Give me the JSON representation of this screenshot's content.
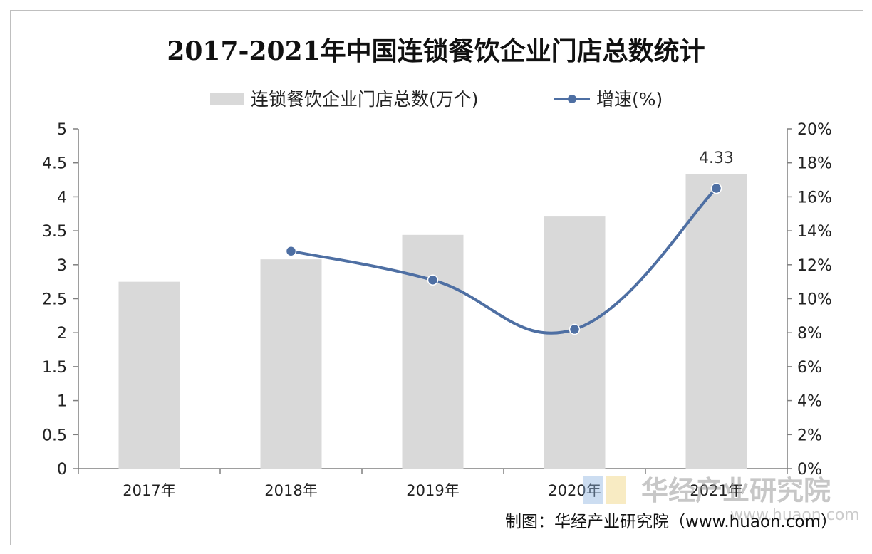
{
  "chart_data": {
    "type": "bar",
    "title": "2017-2021年中国连锁餐饮企业门店总数统计",
    "categories": [
      "2017年",
      "2018年",
      "2019年",
      "2020年",
      "2021年"
    ],
    "series": [
      {
        "name": "连锁餐饮企业门店总数(万个)",
        "type": "bar",
        "axis": "left",
        "values": [
          2.75,
          3.08,
          3.44,
          3.71,
          4.33
        ]
      },
      {
        "name": "增速(%)",
        "type": "line",
        "axis": "right",
        "values": [
          null,
          12.8,
          11.1,
          8.2,
          16.5
        ]
      }
    ],
    "data_labels": [
      {
        "category": "2021年",
        "series": "连锁餐饮企业门店总数(万个)",
        "text": "4.33"
      }
    ],
    "y_left": {
      "min": 0,
      "max": 5,
      "step": 0.5,
      "ticks": [
        "0",
        "0.5",
        "1",
        "1.5",
        "2",
        "2.5",
        "3",
        "3.5",
        "4",
        "4.5",
        "5"
      ]
    },
    "y_right": {
      "min": 0,
      "max": 20,
      "step": 2,
      "ticks": [
        "0%",
        "2%",
        "4%",
        "6%",
        "8%",
        "10%",
        "12%",
        "14%",
        "16%",
        "18%",
        "20%"
      ]
    },
    "legend_position": "top",
    "grid": false,
    "colors": {
      "bar": "#d9d9d9",
      "line": "#4e6fa3",
      "axis": "#7f7f7f"
    }
  },
  "source_text": "制图：华经产业研究院（www.huaon.com）",
  "watermark": {
    "text": "华经产业研究院",
    "url": "www.huaon.com"
  }
}
